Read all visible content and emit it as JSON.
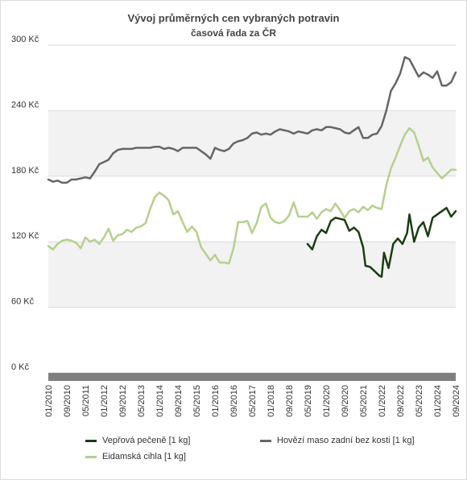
{
  "chart_data": {
    "type": "line",
    "title": "Vývoj průměrných cen vybraných potravin",
    "subtitle": "časová řada za ČR",
    "xlabel": "",
    "ylabel": "",
    "ylim": [
      0,
      300
    ],
    "yticks": [
      "0 Kč",
      "60 Kč",
      "120 Kč",
      "180 Kč",
      "240 Kč",
      "300 Kč"
    ],
    "ytick_values": [
      0,
      60,
      120,
      180,
      240,
      300
    ],
    "x_range": [
      "01/2010",
      "09/2024"
    ],
    "xticks": [
      "01/2010",
      "09/2010",
      "05/2011",
      "01/2012",
      "09/2012",
      "05/2013",
      "01/2014",
      "09/2014",
      "05/2015",
      "01/2016",
      "09/2016",
      "05/2017",
      "01/2018",
      "09/2018",
      "05/2019",
      "01/2020",
      "09/2020",
      "05/2021",
      "01/2022",
      "09/2022",
      "05/2023",
      "01/2024",
      "09/2024"
    ],
    "grid": "alternating horizontal bands",
    "legend_position": "bottom",
    "series": [
      {
        "name": "Vepřová pečeně [1 kg]",
        "color": "#1b3d12",
        "points": [
          [
            "05/2019",
            118
          ],
          [
            "07/2019",
            113
          ],
          [
            "09/2019",
            125
          ],
          [
            "11/2019",
            131
          ],
          [
            "01/2020",
            128
          ],
          [
            "03/2020",
            139
          ],
          [
            "05/2020",
            142
          ],
          [
            "07/2020",
            141
          ],
          [
            "09/2020",
            140
          ],
          [
            "11/2020",
            130
          ],
          [
            "01/2021",
            133
          ],
          [
            "03/2021",
            129
          ],
          [
            "05/2021",
            115
          ],
          [
            "06/2021",
            98
          ],
          [
            "08/2021",
            97
          ],
          [
            "10/2021",
            93
          ],
          [
            "12/2021",
            89
          ],
          [
            "01/2022",
            88
          ],
          [
            "02/2022",
            110
          ],
          [
            "04/2022",
            96
          ],
          [
            "06/2022",
            118
          ],
          [
            "08/2022",
            123
          ],
          [
            "10/2022",
            118
          ],
          [
            "12/2022",
            128
          ],
          [
            "01/2023",
            145
          ],
          [
            "03/2023",
            120
          ],
          [
            "05/2023",
            133
          ],
          [
            "07/2023",
            138
          ],
          [
            "09/2023",
            125
          ],
          [
            "11/2023",
            142
          ],
          [
            "01/2024",
            145
          ],
          [
            "03/2024",
            148
          ],
          [
            "05/2024",
            151
          ],
          [
            "07/2024",
            143
          ],
          [
            "09/2024",
            148
          ]
        ]
      },
      {
        "name": "Hovězí maso zadní bez kosti [1 kg]",
        "color": "#666666",
        "points": [
          [
            "01/2010",
            177
          ],
          [
            "03/2010",
            175
          ],
          [
            "05/2010",
            176
          ],
          [
            "07/2010",
            174
          ],
          [
            "09/2010",
            174
          ],
          [
            "11/2010",
            177
          ],
          [
            "01/2011",
            177
          ],
          [
            "03/2011",
            178
          ],
          [
            "05/2011",
            179
          ],
          [
            "07/2011",
            178
          ],
          [
            "09/2011",
            184
          ],
          [
            "11/2011",
            191
          ],
          [
            "01/2012",
            193
          ],
          [
            "03/2012",
            195
          ],
          [
            "05/2012",
            201
          ],
          [
            "07/2012",
            204
          ],
          [
            "09/2012",
            205
          ],
          [
            "11/2012",
            205
          ],
          [
            "01/2013",
            205
          ],
          [
            "03/2013",
            206
          ],
          [
            "05/2013",
            206
          ],
          [
            "07/2013",
            206
          ],
          [
            "09/2013",
            206
          ],
          [
            "11/2013",
            207
          ],
          [
            "01/2014",
            207
          ],
          [
            "03/2014",
            205
          ],
          [
            "05/2014",
            206
          ],
          [
            "07/2014",
            205
          ],
          [
            "09/2014",
            203
          ],
          [
            "11/2014",
            206
          ],
          [
            "01/2015",
            206
          ],
          [
            "03/2015",
            206
          ],
          [
            "05/2015",
            206
          ],
          [
            "07/2015",
            203
          ],
          [
            "09/2015",
            200
          ],
          [
            "11/2015",
            196
          ],
          [
            "01/2016",
            206
          ],
          [
            "03/2016",
            204
          ],
          [
            "05/2016",
            203
          ],
          [
            "07/2016",
            205
          ],
          [
            "09/2016",
            210
          ],
          [
            "11/2016",
            212
          ],
          [
            "01/2017",
            213
          ],
          [
            "03/2017",
            215
          ],
          [
            "05/2017",
            219
          ],
          [
            "07/2017",
            220
          ],
          [
            "09/2017",
            218
          ],
          [
            "11/2017",
            219
          ],
          [
            "01/2018",
            218
          ],
          [
            "03/2018",
            221
          ],
          [
            "05/2018",
            223
          ],
          [
            "07/2018",
            222
          ],
          [
            "09/2018",
            221
          ],
          [
            "11/2018",
            219
          ],
          [
            "01/2019",
            221
          ],
          [
            "03/2019",
            220
          ],
          [
            "05/2019",
            219
          ],
          [
            "07/2019",
            222
          ],
          [
            "09/2019",
            223
          ],
          [
            "11/2019",
            222
          ],
          [
            "01/2020",
            225
          ],
          [
            "03/2020",
            225
          ],
          [
            "05/2020",
            224
          ],
          [
            "07/2020",
            223
          ],
          [
            "09/2020",
            220
          ],
          [
            "11/2020",
            219
          ],
          [
            "01/2021",
            222
          ],
          [
            "03/2021",
            225
          ],
          [
            "05/2021",
            215
          ],
          [
            "07/2021",
            215
          ],
          [
            "09/2021",
            218
          ],
          [
            "11/2021",
            219
          ],
          [
            "01/2022",
            226
          ],
          [
            "03/2022",
            240
          ],
          [
            "05/2022",
            258
          ],
          [
            "07/2022",
            265
          ],
          [
            "09/2022",
            274
          ],
          [
            "11/2022",
            289
          ],
          [
            "01/2023",
            287
          ],
          [
            "03/2023",
            279
          ],
          [
            "05/2023",
            271
          ],
          [
            "07/2023",
            275
          ],
          [
            "09/2023",
            273
          ],
          [
            "11/2023",
            270
          ],
          [
            "01/2024",
            276
          ],
          [
            "03/2024",
            263
          ],
          [
            "05/2024",
            263
          ],
          [
            "07/2024",
            266
          ],
          [
            "09/2024",
            275
          ]
        ]
      },
      {
        "name": "Eidamská cihla [1 kg]",
        "color": "#b5d08e",
        "points": [
          [
            "01/2010",
            116
          ],
          [
            "03/2010",
            113
          ],
          [
            "05/2010",
            118
          ],
          [
            "07/2010",
            121
          ],
          [
            "09/2010",
            122
          ],
          [
            "11/2010",
            121
          ],
          [
            "01/2011",
            119
          ],
          [
            "03/2011",
            114
          ],
          [
            "05/2011",
            124
          ],
          [
            "07/2011",
            120
          ],
          [
            "09/2011",
            122
          ],
          [
            "11/2011",
            118
          ],
          [
            "01/2012",
            124
          ],
          [
            "03/2012",
            132
          ],
          [
            "05/2012",
            121
          ],
          [
            "07/2012",
            126
          ],
          [
            "09/2012",
            127
          ],
          [
            "11/2012",
            131
          ],
          [
            "01/2013",
            129
          ],
          [
            "03/2013",
            133
          ],
          [
            "05/2013",
            134
          ],
          [
            "07/2013",
            137
          ],
          [
            "09/2013",
            150
          ],
          [
            "11/2013",
            161
          ],
          [
            "01/2014",
            165
          ],
          [
            "03/2014",
            162
          ],
          [
            "05/2014",
            158
          ],
          [
            "07/2014",
            145
          ],
          [
            "09/2014",
            148
          ],
          [
            "11/2014",
            138
          ],
          [
            "01/2015",
            129
          ],
          [
            "03/2015",
            134
          ],
          [
            "05/2015",
            129
          ],
          [
            "07/2015",
            115
          ],
          [
            "09/2015",
            109
          ],
          [
            "11/2015",
            103
          ],
          [
            "01/2016",
            108
          ],
          [
            "03/2016",
            101
          ],
          [
            "05/2016",
            101
          ],
          [
            "07/2016",
            100
          ],
          [
            "09/2016",
            114
          ],
          [
            "11/2016",
            138
          ],
          [
            "01/2017",
            138
          ],
          [
            "03/2017",
            139
          ],
          [
            "05/2017",
            128
          ],
          [
            "07/2017",
            137
          ],
          [
            "09/2017",
            152
          ],
          [
            "11/2017",
            155
          ],
          [
            "01/2018",
            142
          ],
          [
            "03/2018",
            138
          ],
          [
            "05/2018",
            137
          ],
          [
            "07/2018",
            139
          ],
          [
            "09/2018",
            144
          ],
          [
            "11/2018",
            156
          ],
          [
            "01/2019",
            143
          ],
          [
            "03/2019",
            143
          ],
          [
            "05/2019",
            143
          ],
          [
            "07/2019",
            147
          ],
          [
            "09/2019",
            141
          ],
          [
            "11/2019",
            147
          ],
          [
            "01/2020",
            150
          ],
          [
            "03/2020",
            148
          ],
          [
            "05/2020",
            155
          ],
          [
            "07/2020",
            149
          ],
          [
            "09/2020",
            142
          ],
          [
            "11/2020",
            148
          ],
          [
            "01/2021",
            150
          ],
          [
            "03/2021",
            147
          ],
          [
            "05/2021",
            152
          ],
          [
            "07/2021",
            149
          ],
          [
            "09/2021",
            153
          ],
          [
            "11/2021",
            151
          ],
          [
            "01/2022",
            150
          ],
          [
            "03/2022",
            172
          ],
          [
            "05/2022",
            187
          ],
          [
            "07/2022",
            197
          ],
          [
            "09/2022",
            208
          ],
          [
            "11/2022",
            218
          ],
          [
            "01/2023",
            224
          ],
          [
            "03/2023",
            220
          ],
          [
            "05/2023",
            208
          ],
          [
            "07/2023",
            194
          ],
          [
            "09/2023",
            197
          ],
          [
            "11/2023",
            188
          ],
          [
            "01/2024",
            183
          ],
          [
            "03/2024",
            178
          ],
          [
            "05/2024",
            182
          ],
          [
            "07/2024",
            186
          ],
          [
            "09/2024",
            186
          ]
        ]
      }
    ]
  }
}
